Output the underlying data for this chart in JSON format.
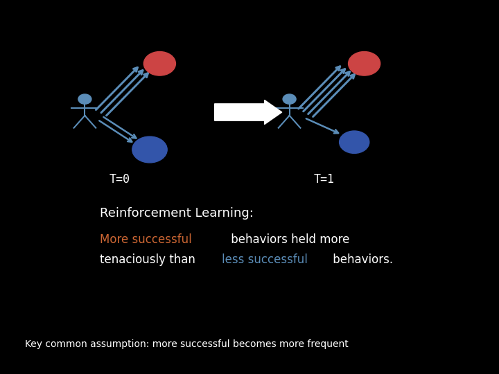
{
  "bg_color": "#000000",
  "arrow_color": "#5b8db8",
  "red_circle_color": "#cc4444",
  "blue_circle_color": "#3355aa",
  "white_color": "#ffffff",
  "person_color": "#5b8db8",
  "t0_label": "T=0",
  "t1_label": "T=1",
  "title_text": "Reinforcement Learning:",
  "line1_parts": [
    {
      "text": "More successful",
      "color": "#cc6633"
    },
    {
      "text": " behaviors held more",
      "color": "#ffffff"
    }
  ],
  "line2_parts": [
    {
      "text": "tenaciously than ",
      "color": "#ffffff"
    },
    {
      "text": "less successful",
      "color": "#5b8db8"
    },
    {
      "text": " behaviors.",
      "color": "#ffffff"
    }
  ],
  "footnote": "Key common assumption: more successful becomes more frequent",
  "figsize": [
    7.2,
    5.4
  ],
  "dpi": 100
}
